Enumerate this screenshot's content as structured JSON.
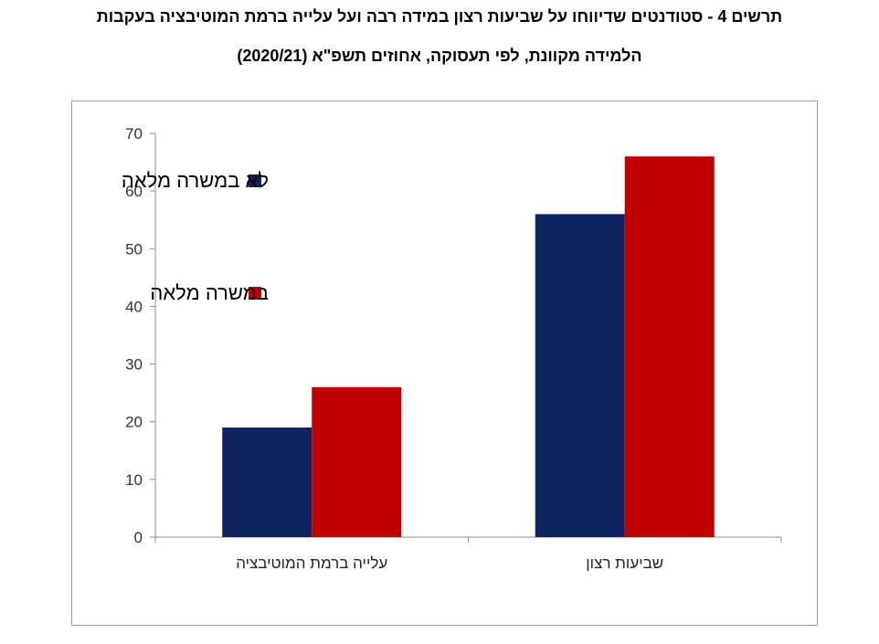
{
  "title_line1": "תרשים 4 - סטודנטים שדיווחו על שביעות רצון במידה רבה ועל עלייה ברמת המוטיבציה בעקבות",
  "title_line2": "הלמידה מקוונת, לפי תעסוקה, אחוזים תשפ\"א (2020/21)",
  "chart_data": {
    "type": "bar",
    "categories": [
      "עלייה ברמת המוטיבציה",
      "שביעות רצון"
    ],
    "series": [
      {
        "name": "לא במשרה מלאה",
        "color": "#0e2460",
        "values": [
          19,
          56
        ]
      },
      {
        "name": "במשרה מלאה",
        "color": "#c00000",
        "values": [
          26,
          66
        ]
      }
    ],
    "ylim": [
      0,
      70
    ],
    "yticks": [
      0,
      10,
      20,
      30,
      40,
      50,
      60,
      70
    ],
    "grid": false,
    "legend_position": "top-left"
  }
}
